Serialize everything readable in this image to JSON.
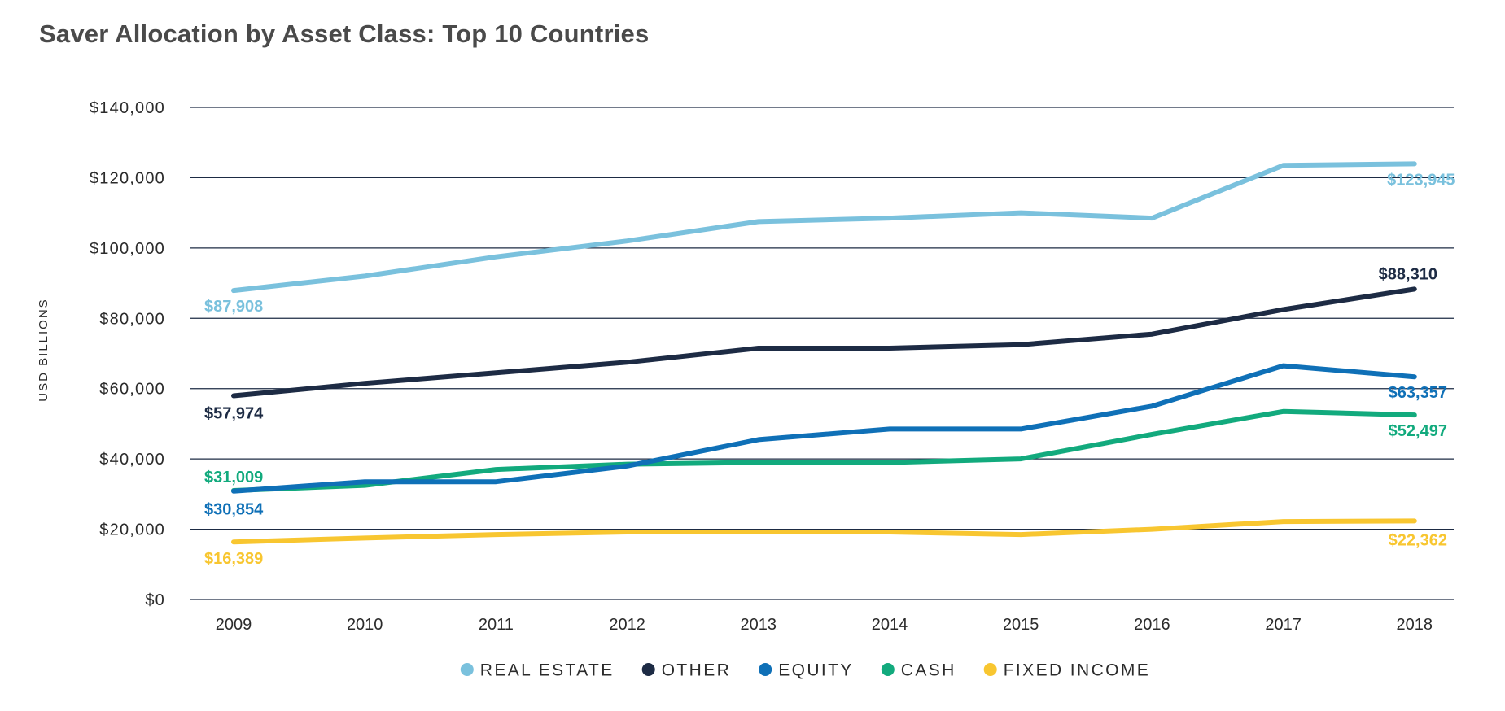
{
  "chart_data": {
    "type": "line",
    "title": "Saver Allocation by Asset Class: Top 10 Countries",
    "ylabel": "USD BILLIONS",
    "xlabel": "",
    "x": [
      "2009",
      "2010",
      "2011",
      "2012",
      "2013",
      "2014",
      "2015",
      "2016",
      "2017",
      "2018"
    ],
    "ylim": [
      0,
      140000
    ],
    "yticks": [
      {
        "value": 0,
        "label": "$0"
      },
      {
        "value": 20000,
        "label": "$20,000"
      },
      {
        "value": 40000,
        "label": "$40,000"
      },
      {
        "value": 60000,
        "label": "$60,000"
      },
      {
        "value": 80000,
        "label": "$80,000"
      },
      {
        "value": 100000,
        "label": "$100,000"
      },
      {
        "value": 120000,
        "label": "$120,000"
      },
      {
        "value": 140000,
        "label": "$140,000"
      }
    ],
    "grid": true,
    "legend_position": "bottom-center",
    "series": [
      {
        "name": "REAL ESTATE",
        "color": "#7ac1dd",
        "values": [
          87908,
          92000,
          97500,
          102000,
          107500,
          108500,
          110000,
          108500,
          123500,
          123945
        ],
        "start_label": "$87,908",
        "end_label": "$123,945"
      },
      {
        "name": "OTHER",
        "color": "#1d2b44",
        "values": [
          57974,
          61500,
          64500,
          67500,
          71500,
          71500,
          72500,
          75500,
          82500,
          88310
        ],
        "start_label": "$57,974",
        "end_label": "$88,310"
      },
      {
        "name": "EQUITY",
        "color": "#0f70b7",
        "values": [
          30854,
          33500,
          33500,
          38000,
          45500,
          48500,
          48500,
          55000,
          66500,
          63357
        ],
        "start_label": "$30,854",
        "end_label": "$63,357"
      },
      {
        "name": "CASH",
        "color": "#12aa7d",
        "values": [
          31009,
          32500,
          37000,
          38500,
          39000,
          39000,
          40000,
          47000,
          53500,
          52497
        ],
        "start_label": "$31,009",
        "end_label": "$52,497"
      },
      {
        "name": "FIXED INCOME",
        "color": "#f8c630",
        "values": [
          16389,
          17500,
          18500,
          19200,
          19200,
          19200,
          18500,
          20000,
          22200,
          22362
        ],
        "start_label": "$16,389",
        "end_label": "$22,362"
      }
    ]
  }
}
